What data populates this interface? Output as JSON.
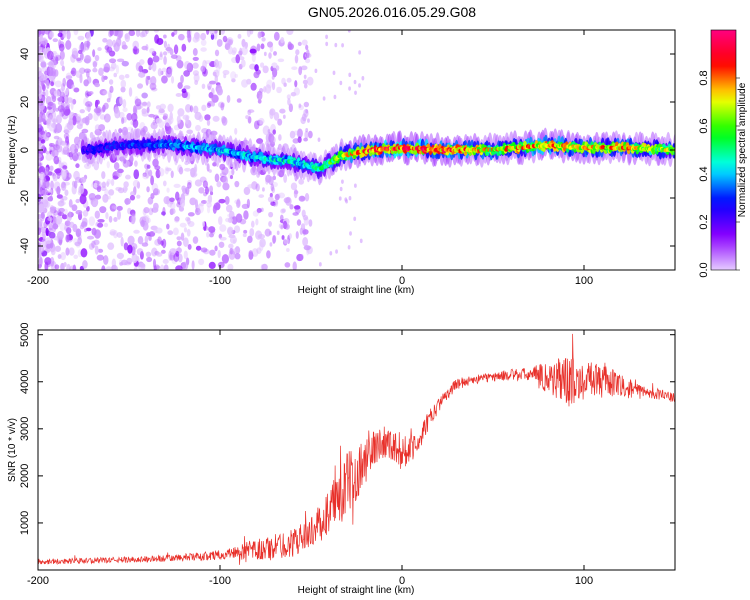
{
  "title": "GN05.2026.016.05.29.G08",
  "chart_data": [
    {
      "type": "heatmap",
      "xlabel": "Height of straight line (km)",
      "ylabel": "Frequency (Hz)",
      "xlim": [
        -200,
        150
      ],
      "ylim": [
        -50,
        50
      ],
      "xticks": [
        -200,
        -100,
        0,
        100
      ],
      "yticks": [
        -40,
        -20,
        0,
        20,
        40
      ],
      "colorbar": {
        "label": "Normalized spectral amplitude",
        "range": [
          0,
          1
        ],
        "ticks": [
          "0.0",
          "0.2",
          "0.4",
          "0.6",
          "0.8"
        ],
        "tick_values": [
          0,
          0.2,
          0.4,
          0.6,
          0.8
        ],
        "colormap": [
          "#e6ccff",
          "#8a00ff",
          "#0000ff",
          "#00ffff",
          "#00ff00",
          "#ffff00",
          "#ff0000",
          "#ff0080"
        ]
      },
      "ridge": {
        "note": "dominant frequency track (approximate), frequency vs height",
        "x": [
          -175,
          -150,
          -125,
          -100,
          -80,
          -60,
          -45,
          -35,
          -25,
          -15,
          0,
          20,
          50,
          80,
          100,
          120,
          150
        ],
        "y": [
          0,
          2,
          2,
          0,
          -3,
          -5,
          -8,
          -3,
          -1,
          0,
          1,
          0,
          0,
          2,
          1,
          1,
          0
        ],
        "peak_amplitude": [
          0.25,
          0.3,
          0.35,
          0.4,
          0.4,
          0.45,
          0.45,
          0.6,
          0.75,
          0.85,
          0.85,
          0.85,
          0.7,
          0.8,
          0.7,
          0.75,
          0.6
        ]
      }
    },
    {
      "type": "line",
      "xlabel": "Height of straight line (km)",
      "ylabel": "SNR (10 * v/v)",
      "xlim": [
        -200,
        150
      ],
      "ylim": [
        0,
        5100
      ],
      "xticks": [
        -200,
        -100,
        0,
        100
      ],
      "yticks": [
        1000,
        2000,
        3000,
        4000,
        5000
      ],
      "color": "#e8302a",
      "series": [
        {
          "name": "SNR",
          "x": [
            -200,
            -180,
            -160,
            -140,
            -120,
            -100,
            -90,
            -80,
            -70,
            -60,
            -50,
            -45,
            -40,
            -35,
            -30,
            -25,
            -20,
            -15,
            -10,
            -5,
            0,
            5,
            10,
            15,
            20,
            25,
            30,
            40,
            50,
            60,
            70,
            80,
            90,
            100,
            110,
            120,
            130,
            140,
            150
          ],
          "y": [
            180,
            190,
            210,
            230,
            260,
            320,
            380,
            420,
            480,
            580,
            800,
            1000,
            1250,
            1550,
            1800,
            2100,
            2300,
            2600,
            2750,
            2650,
            2500,
            2600,
            2800,
            3200,
            3500,
            3750,
            3950,
            4050,
            4100,
            4150,
            4150,
            4100,
            4000,
            4050,
            4050,
            3900,
            3800,
            3750,
            3650
          ],
          "noise_amplitude": [
            60,
            60,
            60,
            70,
            80,
            100,
            150,
            250,
            280,
            300,
            320,
            400,
            500,
            650,
            700,
            600,
            500,
            400,
            350,
            350,
            400,
            300,
            250,
            200,
            150,
            120,
            120,
            100,
            100,
            120,
            150,
            350,
            600,
            350,
            400,
            250,
            150,
            120,
            100
          ]
        }
      ]
    }
  ]
}
